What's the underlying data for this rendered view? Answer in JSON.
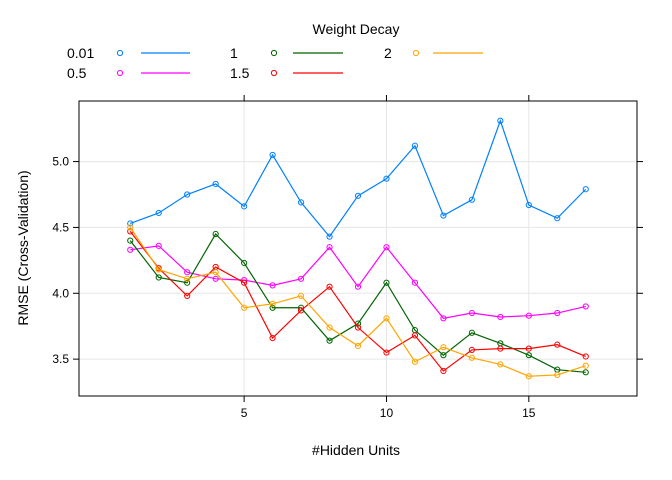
{
  "chart_data": {
    "type": "line",
    "title": "",
    "legend_title": "Weight Decay",
    "legend_position": "top",
    "xlabel": "#Hidden Units",
    "ylabel": "RMSE (Cross-Validation)",
    "xlim": [
      -0.8,
      18.8
    ],
    "ylim": [
      3.22,
      5.46
    ],
    "xticks": [
      5,
      10,
      15
    ],
    "yticks": [
      3.5,
      4.0,
      4.5,
      5.0
    ],
    "xtick_labels": [
      "5",
      "10",
      "15"
    ],
    "ytick_labels": [
      "3.5",
      "4.0",
      "4.5",
      "5.0"
    ],
    "grid": true,
    "x": [
      1,
      2,
      3,
      4,
      5,
      6,
      7,
      8,
      9,
      10,
      11,
      12,
      13,
      14,
      15,
      16,
      17
    ],
    "series": [
      {
        "name": "0.01",
        "color": "#0080ff",
        "values": [
          4.53,
          4.61,
          4.75,
          4.83,
          4.66,
          5.05,
          4.69,
          4.43,
          4.74,
          4.87,
          5.12,
          4.59,
          4.71,
          5.31,
          4.67,
          4.57,
          4.79
        ]
      },
      {
        "name": "0.5",
        "color": "#ff00ff",
        "values": [
          4.33,
          4.36,
          4.16,
          4.11,
          4.1,
          4.06,
          4.11,
          4.35,
          4.05,
          4.35,
          4.08,
          3.81,
          3.85,
          3.82,
          3.83,
          3.85,
          3.9
        ]
      },
      {
        "name": "1",
        "color": "#006400",
        "values": [
          4.4,
          4.12,
          4.08,
          4.45,
          4.23,
          3.89,
          3.89,
          3.64,
          3.77,
          4.08,
          3.72,
          3.53,
          3.7,
          3.62,
          3.53,
          3.42,
          3.4
        ]
      },
      {
        "name": "1.5",
        "color": "#ff0000",
        "values": [
          4.47,
          4.19,
          3.98,
          4.2,
          4.08,
          3.66,
          3.87,
          4.05,
          3.74,
          3.55,
          3.68,
          3.41,
          3.57,
          3.58,
          3.58,
          3.61,
          3.52
        ]
      },
      {
        "name": "2",
        "color": "#ffa500",
        "values": [
          4.5,
          4.18,
          4.11,
          4.16,
          3.89,
          3.92,
          3.98,
          3.74,
          3.6,
          3.81,
          3.48,
          3.59,
          3.51,
          3.46,
          3.37,
          3.38,
          3.45
        ]
      }
    ]
  }
}
